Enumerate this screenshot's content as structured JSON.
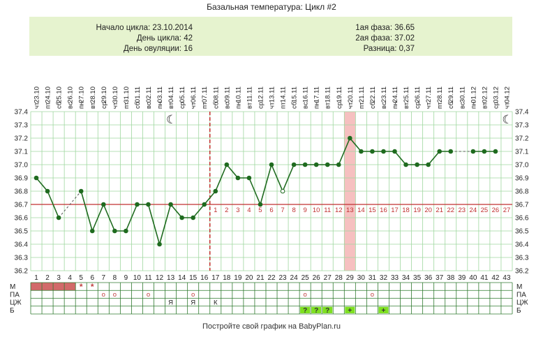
{
  "title": "Базальная температура: Цикл #2",
  "info": {
    "cycle_start": "Начало цикла: 23.10.2014",
    "cycle_day": "День цикла: 42",
    "ovulation_day": "День овуляции: 16",
    "phase1": "1ая фаза: 36.65",
    "phase2": "2ая фаза: 37.02",
    "difference": "Разница: 0,37"
  },
  "footer": "Постройте свой график на BabyPlan.ru",
  "colors": {
    "line": "#1f6b1f",
    "coverline": "#c03030",
    "ovulation_line": "#c02020",
    "highlight": "#f6c0c0",
    "grid": "#9fd79f",
    "menses": "#d26a6a",
    "green_cell": "#7ee020",
    "info_bg": "#e6f3cf"
  },
  "chart_data": {
    "type": "line",
    "ylim": [
      36.2,
      37.4
    ],
    "yticks": [
      "37.4",
      "37.3",
      "37.2",
      "37.1",
      "37.0",
      "36.9",
      "36.8",
      "36.7",
      "36.6",
      "36.5",
      "36.4",
      "36.3",
      "36.2"
    ],
    "days": [
      "1",
      "2",
      "3",
      "4",
      "5",
      "6",
      "7",
      "8",
      "9",
      "10",
      "11",
      "12",
      "13",
      "14",
      "15",
      "16",
      "17",
      "18",
      "19",
      "20",
      "21",
      "22",
      "23",
      "24",
      "25",
      "26",
      "27",
      "28",
      "29",
      "30",
      "31",
      "32",
      "33",
      "34",
      "35",
      "36",
      "37",
      "38",
      "39",
      "40",
      "41",
      "42",
      "43"
    ],
    "dates": [
      "23.10",
      "24.10",
      "25.10",
      "26.10",
      "27.10",
      "28.10",
      "29.10",
      "30.10",
      "31.10",
      "01.11",
      "02.11",
      "03.11",
      "04.11",
      "05.11",
      "06.11",
      "07.11",
      "08.11",
      "09.11",
      "10.11",
      "11.11",
      "12.11",
      "13.11",
      "14.11",
      "15.11",
      "16.11",
      "17.11",
      "18.11",
      "19.11",
      "20.11",
      "21.11",
      "22.11",
      "23.11",
      "24.11",
      "25.11",
      "26.11",
      "27.11",
      "28.11",
      "29.11",
      "30.11",
      "01.12",
      "02.12",
      "03.12",
      "04.12"
    ],
    "weekdays": [
      "чт",
      "пт",
      "сб",
      "вс",
      "пн",
      "вт",
      "ср",
      "чт",
      "пт",
      "сб",
      "вс",
      "пн",
      "вт",
      "ср",
      "чт",
      "пт",
      "сб",
      "вс",
      "пн",
      "вт",
      "ср",
      "чт",
      "пт",
      "сб",
      "вс",
      "пн",
      "вт",
      "ср",
      "чт",
      "пт",
      "сб",
      "вс",
      "пн",
      "вт",
      "ср",
      "чт",
      "пт",
      "сб",
      "вс",
      "пн",
      "вт",
      "ср",
      "чт"
    ],
    "temperatures": [
      36.9,
      36.8,
      36.6,
      null,
      36.8,
      36.5,
      36.7,
      36.5,
      36.5,
      36.7,
      36.7,
      36.4,
      36.7,
      36.6,
      36.6,
      36.7,
      36.8,
      37.0,
      36.9,
      36.9,
      36.7,
      37.0,
      36.8,
      37.0,
      37.0,
      37.0,
      37.0,
      37.0,
      37.2,
      37.1,
      37.1,
      37.1,
      37.1,
      37.0,
      37.0,
      37.0,
      37.1,
      37.1,
      null,
      37.1,
      37.1,
      37.1,
      null
    ],
    "open_points": [
      23
    ],
    "coverline": 36.7,
    "ovulation_day": 16,
    "highlight_day": 29,
    "luteal_labels": [
      "1",
      "2",
      "3",
      "4",
      "5",
      "6",
      "7",
      "8",
      "9",
      "10",
      "11",
      "12",
      "13",
      "14",
      "15",
      "16",
      "17",
      "18",
      "19",
      "20",
      "21",
      "22",
      "23",
      "24",
      "25",
      "26",
      "27"
    ],
    "moon_days": [
      13,
      43
    ]
  },
  "table": {
    "rows": [
      "М",
      "ПА",
      "ЦЖ",
      "Б"
    ],
    "menses_days": [
      1,
      2,
      3,
      4
    ],
    "star_days": [
      5,
      6
    ],
    "pa_circle_days": [
      7,
      8,
      11,
      15,
      25,
      31
    ],
    "cm_marks": [
      {
        "day": 13,
        "text": "Я"
      },
      {
        "day": 15,
        "text": "Я"
      },
      {
        "day": 17,
        "text": "К"
      }
    ],
    "b_marks": [
      {
        "day": 25,
        "text": "?"
      },
      {
        "day": 26,
        "text": "?"
      },
      {
        "day": 27,
        "text": "?"
      },
      {
        "day": 29,
        "text": "+"
      },
      {
        "day": 32,
        "text": "+"
      }
    ],
    "star_char": "*",
    "circle_char": "o"
  }
}
